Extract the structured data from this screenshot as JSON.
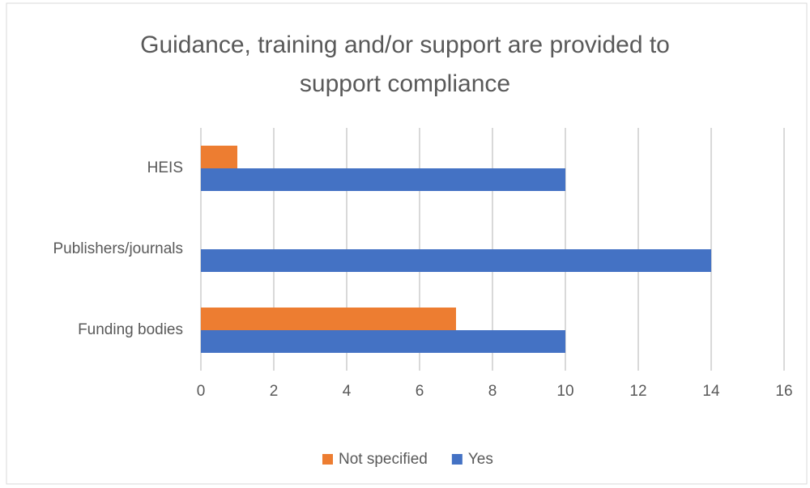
{
  "chart_data": {
    "type": "bar",
    "orientation": "horizontal",
    "title": "Guidance, training and/or support are provided to support compliance",
    "categories": [
      "HEIS",
      "Publishers/journals",
      "Funding bodies"
    ],
    "series": [
      {
        "name": "Not specified",
        "color": "#ed7d31",
        "values": [
          1,
          0,
          7
        ]
      },
      {
        "name": "Yes",
        "color": "#4472c4",
        "values": [
          10,
          14,
          10
        ]
      }
    ],
    "xlim": [
      0,
      16
    ],
    "xticks": [
      0,
      2,
      4,
      6,
      8,
      10,
      12,
      14,
      16
    ],
    "grid": true,
    "legend": "bottom"
  }
}
